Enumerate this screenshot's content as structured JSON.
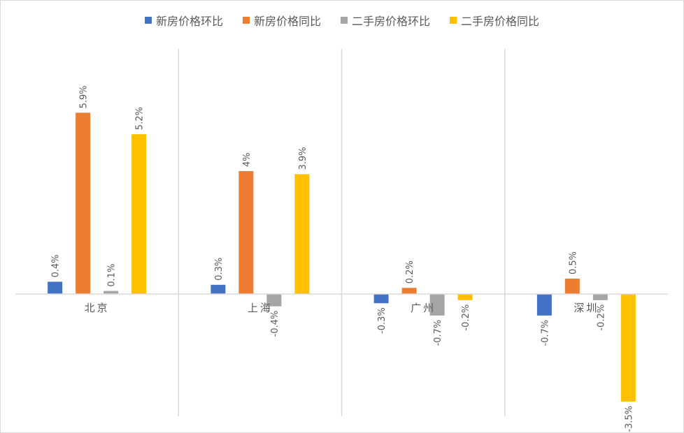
{
  "chart_data": {
    "type": "bar",
    "categories": [
      "北京",
      "上海",
      "广州",
      "深圳"
    ],
    "series": [
      {
        "name": "新房价格环比",
        "color": "#4472C4",
        "values": [
          0.4,
          0.3,
          -0.3,
          -0.7
        ],
        "labels": [
          "0.4%",
          "0.3%",
          "-0.3%",
          "-0.7%"
        ]
      },
      {
        "name": "新房价格同比",
        "color": "#ED7D31",
        "values": [
          5.9,
          4.0,
          0.2,
          0.5
        ],
        "labels": [
          "5.9%",
          "4%",
          "0.2%",
          "0.5%"
        ]
      },
      {
        "name": "二手房价格环比",
        "color": "#A5A5A5",
        "values": [
          0.1,
          -0.4,
          -0.7,
          -0.2
        ],
        "labels": [
          "0.1%",
          "-0.4%",
          "-0.7%",
          "-0.2%"
        ]
      },
      {
        "name": "二手房价格同比",
        "color": "#FFC000",
        "values": [
          5.2,
          3.9,
          -0.2,
          -3.5
        ],
        "labels": [
          "5.2%",
          "3.9%",
          "-0.2%",
          "-3.5%"
        ]
      }
    ],
    "ylim": [
      -4.0,
      8.0
    ],
    "legend_position": "top",
    "grid": false
  }
}
